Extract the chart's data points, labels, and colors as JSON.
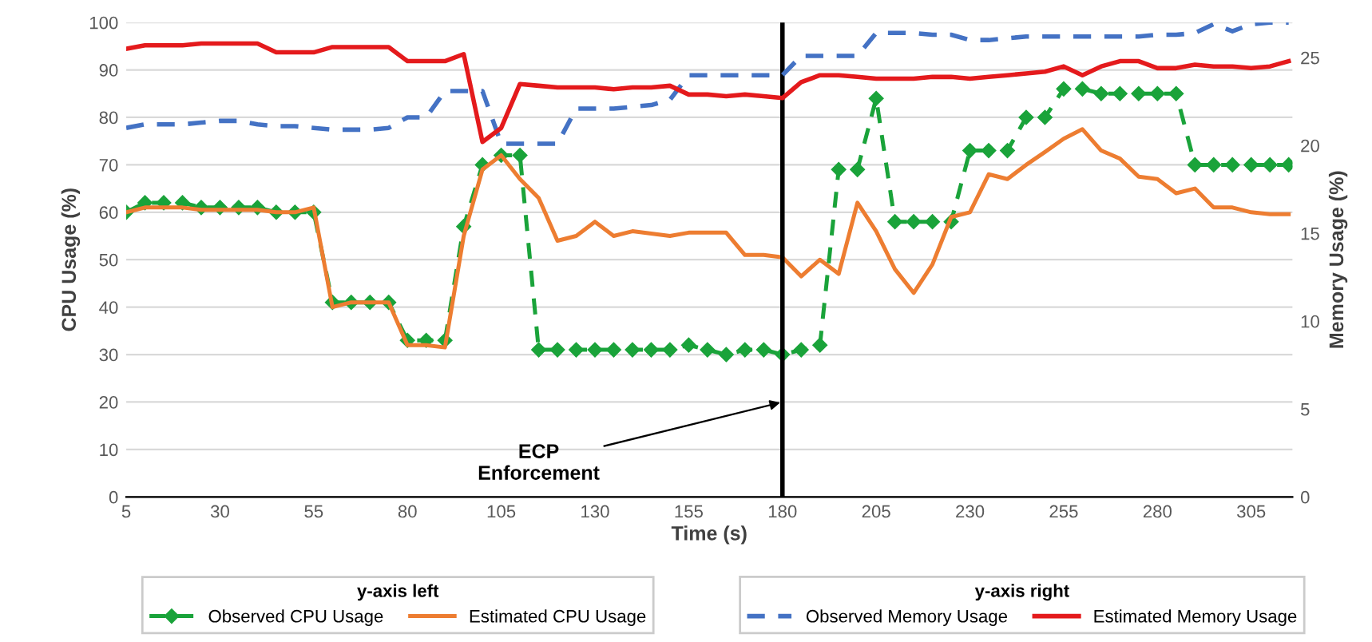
{
  "chart_data": {
    "type": "line",
    "xlabel": "Time (s)",
    "ylabel": "CPU Usage (%)",
    "y2label": "Memory Usage (%)",
    "legend_title": [
      "y-axis left",
      "y-axis right"
    ],
    "x": [
      5,
      10,
      15,
      20,
      25,
      30,
      35,
      40,
      45,
      50,
      55,
      60,
      65,
      70,
      75,
      80,
      85,
      90,
      95,
      100,
      105,
      110,
      115,
      120,
      125,
      130,
      135,
      140,
      145,
      150,
      155,
      160,
      165,
      170,
      175,
      180,
      185,
      190,
      195,
      200,
      205,
      210,
      215,
      220,
      225,
      230,
      235,
      240,
      245,
      250,
      255,
      260,
      265,
      270,
      275,
      280,
      285,
      290,
      295,
      300,
      305,
      310,
      315
    ],
    "series": [
      {
        "name": "Observed CPU Usage",
        "color": "#1aa33a",
        "marker": "diamond",
        "line_style": "dashed",
        "values": [
          60,
          62,
          62,
          62,
          61,
          61,
          61,
          61,
          60,
          60,
          60,
          41,
          41,
          41,
          41,
          33,
          33,
          33,
          57,
          70,
          72,
          72,
          31,
          31,
          31,
          31,
          31,
          31,
          31,
          31,
          32,
          31,
          30,
          31,
          31,
          30,
          31,
          32,
          69,
          69,
          84,
          58,
          58,
          58,
          58,
          73,
          73,
          73,
          80,
          80,
          86,
          86,
          85,
          85,
          85,
          85,
          85,
          70,
          70,
          70,
          70,
          70,
          70
        ]
      },
      {
        "name": "Estimated CPU Usage",
        "color": "#ed7d31",
        "marker": "none",
        "line_style": "solid",
        "values": [
          60,
          61,
          61,
          61,
          60.5,
          60.5,
          60.5,
          60.5,
          60,
          60,
          61,
          40,
          41,
          41,
          41,
          32,
          32,
          31.5,
          55,
          69,
          72,
          67,
          63,
          54,
          55,
          58,
          55,
          56,
          55.5,
          55,
          55.7,
          55.7,
          55.7,
          51,
          51,
          50.5,
          46.5,
          50,
          47,
          62,
          56,
          48,
          43,
          49,
          59,
          60,
          68,
          67,
          70,
          72.7,
          75.5,
          77.5,
          73,
          71.3,
          67.5,
          67,
          64,
          65,
          61,
          61,
          60,
          59.6,
          59.6
        ]
      },
      {
        "name": "Observed Memory Usage",
        "color": "#4472c4",
        "marker": "none",
        "line_style": "dashed",
        "axis": "y2",
        "values": [
          21.0,
          21.2,
          21.2,
          21.2,
          21.3,
          21.4,
          21.4,
          21.2,
          21.1,
          21.1,
          21.0,
          20.9,
          20.9,
          20.9,
          21.0,
          21.6,
          21.6,
          23.1,
          23.1,
          23.1,
          20.1,
          20.1,
          20.1,
          20.1,
          22.1,
          22.1,
          22.1,
          22.2,
          22.3,
          22.6,
          24.0,
          24.0,
          24.0,
          24.0,
          24.0,
          24.0,
          25.1,
          25.1,
          25.1,
          25.1,
          26.4,
          26.4,
          26.4,
          26.3,
          26.3,
          26.0,
          26.0,
          26.1,
          26.2,
          26.2,
          26.2,
          26.2,
          26.2,
          26.2,
          26.2,
          26.3,
          26.3,
          26.4,
          26.9,
          26.5,
          26.9,
          27.0,
          27.0
        ]
      },
      {
        "name": "Estimated Memory Usage",
        "color": "#e41a1c",
        "marker": "none",
        "line_style": "solid",
        "axis": "y2",
        "values": [
          25.5,
          25.7,
          25.7,
          25.7,
          25.8,
          25.8,
          25.8,
          25.8,
          25.3,
          25.3,
          25.3,
          25.6,
          25.6,
          25.6,
          25.6,
          24.8,
          24.8,
          24.8,
          25.2,
          20.2,
          21.0,
          23.5,
          23.4,
          23.3,
          23.3,
          23.3,
          23.2,
          23.3,
          23.3,
          23.4,
          22.9,
          22.9,
          22.8,
          22.9,
          22.8,
          22.7,
          23.6,
          24.0,
          24.0,
          23.9,
          23.8,
          23.8,
          23.8,
          23.9,
          23.9,
          23.8,
          23.9,
          24.0,
          24.1,
          24.2,
          24.5,
          24.0,
          24.5,
          24.8,
          24.8,
          24.4,
          24.4,
          24.6,
          24.5,
          24.5,
          24.4,
          24.5,
          24.8
        ]
      }
    ],
    "xlim": [
      5,
      316
    ],
    "xticks": [
      5,
      30,
      55,
      80,
      105,
      130,
      155,
      180,
      205,
      230,
      255,
      280,
      305
    ],
    "ylim": [
      0,
      100
    ],
    "yticks": [
      0,
      10,
      20,
      30,
      40,
      50,
      60,
      70,
      80,
      90,
      100
    ],
    "y2lim": [
      0,
      27
    ],
    "y2ticks": [
      0,
      5,
      10,
      15,
      20,
      25
    ],
    "grid": "y",
    "legend": "bottom",
    "ref_lines": [
      {
        "axis": "x",
        "value": 180,
        "color": "#000000",
        "line_style": "solid"
      }
    ],
    "annotations": [
      {
        "text": "ECP\nEnforcement",
        "x": 180,
        "y": 20
      }
    ]
  }
}
